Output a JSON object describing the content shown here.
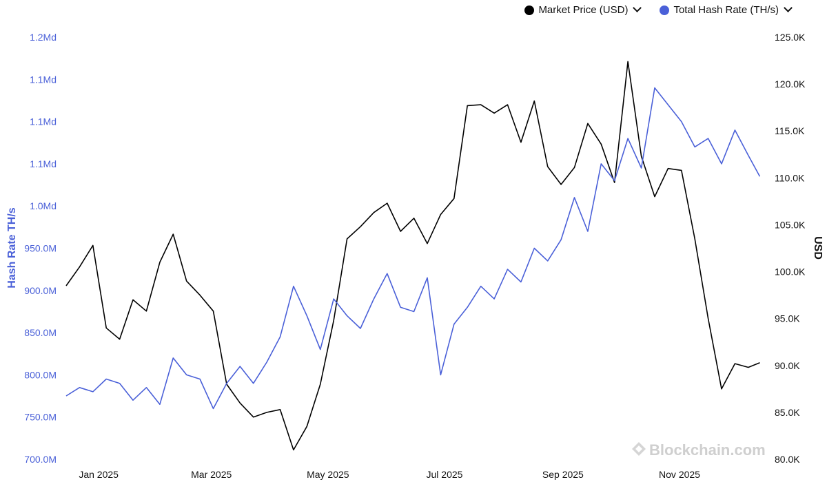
{
  "legend": [
    {
      "label": "Market Price (USD)",
      "color": "#000000"
    },
    {
      "label": "Total Hash Rate (TH/s)",
      "color": "#4a60d8"
    }
  ],
  "watermark": "Blockchain.com",
  "chart_data": {
    "type": "line",
    "title": "",
    "x_range": [
      "2024-12-15",
      "2025-12-15"
    ],
    "x_ticks": [
      {
        "label": "Jan 2025",
        "date": "2025-01-01"
      },
      {
        "label": "Mar 2025",
        "date": "2025-03-01"
      },
      {
        "label": "May 2025",
        "date": "2025-05-01"
      },
      {
        "label": "Jul 2025",
        "date": "2025-07-01"
      },
      {
        "label": "Sep 2025",
        "date": "2025-09-01"
      },
      {
        "label": "Nov 2025",
        "date": "2025-11-01"
      }
    ],
    "left_axis": {
      "label": "Hash Rate TH/s",
      "range": [
        700000000,
        1200000000
      ],
      "ticks": [
        {
          "value": 700000000,
          "label": "700.0M"
        },
        {
          "value": 750000000,
          "label": "750.0M"
        },
        {
          "value": 800000000,
          "label": "800.0M"
        },
        {
          "value": 850000000,
          "label": "850.0M"
        },
        {
          "value": 900000000,
          "label": "900.0M"
        },
        {
          "value": 950000000,
          "label": "950.0M"
        },
        {
          "value": 1000000000,
          "label": "1.0Md"
        },
        {
          "value": 1050000000,
          "label": "1.1Md"
        },
        {
          "value": 1100000000,
          "label": "1.1Md"
        },
        {
          "value": 1150000000,
          "label": "1.1Md"
        },
        {
          "value": 1200000000,
          "label": "1.2Md"
        }
      ]
    },
    "right_axis": {
      "label": "USD",
      "range": [
        80000,
        125000
      ],
      "ticks": [
        {
          "value": 80000,
          "label": "80.0K"
        },
        {
          "value": 85000,
          "label": "85.0K"
        },
        {
          "value": 90000,
          "label": "90.0K"
        },
        {
          "value": 95000,
          "label": "95.0K"
        },
        {
          "value": 100000,
          "label": "100.0K"
        },
        {
          "value": 105000,
          "label": "105.0K"
        },
        {
          "value": 110000,
          "label": "110.0K"
        },
        {
          "value": 115000,
          "label": "115.0K"
        },
        {
          "value": 120000,
          "label": "120.0K"
        },
        {
          "value": 125000,
          "label": "125.0K"
        }
      ]
    },
    "series": [
      {
        "name": "Market Price (USD)",
        "axis": "right",
        "color": "#000000",
        "x": [
          "2024-12-15",
          "2024-12-22",
          "2024-12-29",
          "2025-01-05",
          "2025-01-12",
          "2025-01-19",
          "2025-01-26",
          "2025-02-02",
          "2025-02-09",
          "2025-02-16",
          "2025-02-23",
          "2025-03-02",
          "2025-03-09",
          "2025-03-16",
          "2025-03-23",
          "2025-03-30",
          "2025-04-06",
          "2025-04-13",
          "2025-04-20",
          "2025-04-27",
          "2025-05-04",
          "2025-05-11",
          "2025-05-18",
          "2025-05-25",
          "2025-06-01",
          "2025-06-08",
          "2025-06-15",
          "2025-06-22",
          "2025-06-29",
          "2025-07-06",
          "2025-07-13",
          "2025-07-20",
          "2025-07-27",
          "2025-08-03",
          "2025-08-10",
          "2025-08-17",
          "2025-08-24",
          "2025-08-31",
          "2025-09-07",
          "2025-09-14",
          "2025-09-21",
          "2025-09-28",
          "2025-10-05",
          "2025-10-12",
          "2025-10-19",
          "2025-10-26",
          "2025-11-02",
          "2025-11-09",
          "2025-11-16",
          "2025-11-23",
          "2025-11-30",
          "2025-12-07",
          "2025-12-13"
        ],
        "values": [
          98500,
          100500,
          102800,
          94000,
          92800,
          97000,
          95800,
          101000,
          104000,
          99000,
          97500,
          95800,
          88000,
          86000,
          84500,
          85000,
          85300,
          81000,
          83500,
          88000,
          94800,
          103500,
          104800,
          106300,
          107300,
          104300,
          105700,
          103000,
          106100,
          107800,
          117700,
          117800,
          116900,
          117800,
          113800,
          118200,
          111200,
          109300,
          111100,
          115800,
          113600,
          109500,
          122400,
          112300,
          108000,
          111000,
          110800,
          103500,
          95000,
          87500,
          90200,
          89800,
          90300
        ]
      },
      {
        "name": "Total Hash Rate (TH/s)",
        "axis": "left",
        "color": "#4a60d8",
        "x": [
          "2024-12-15",
          "2024-12-22",
          "2024-12-29",
          "2025-01-05",
          "2025-01-12",
          "2025-01-19",
          "2025-01-26",
          "2025-02-02",
          "2025-02-09",
          "2025-02-16",
          "2025-02-23",
          "2025-03-02",
          "2025-03-09",
          "2025-03-16",
          "2025-03-23",
          "2025-03-30",
          "2025-04-06",
          "2025-04-13",
          "2025-04-20",
          "2025-04-27",
          "2025-05-04",
          "2025-05-11",
          "2025-05-18",
          "2025-05-25",
          "2025-06-01",
          "2025-06-08",
          "2025-06-15",
          "2025-06-22",
          "2025-06-29",
          "2025-07-06",
          "2025-07-13",
          "2025-07-20",
          "2025-07-27",
          "2025-08-03",
          "2025-08-10",
          "2025-08-17",
          "2025-08-24",
          "2025-08-31",
          "2025-09-07",
          "2025-09-14",
          "2025-09-21",
          "2025-09-28",
          "2025-10-05",
          "2025-10-12",
          "2025-10-19",
          "2025-10-26",
          "2025-11-02",
          "2025-11-09",
          "2025-11-16",
          "2025-11-23",
          "2025-11-30",
          "2025-12-07",
          "2025-12-13"
        ],
        "values": [
          775000000,
          785000000,
          780000000,
          795000000,
          790000000,
          770000000,
          785000000,
          765000000,
          820000000,
          800000000,
          795000000,
          760000000,
          790000000,
          810000000,
          790000000,
          815000000,
          845000000,
          905000000,
          870000000,
          830000000,
          890000000,
          870000000,
          855000000,
          890000000,
          920000000,
          880000000,
          875000000,
          915000000,
          800000000,
          860000000,
          880000000,
          905000000,
          890000000,
          925000000,
          910000000,
          950000000,
          935000000,
          960000000,
          1010000000,
          970000000,
          1050000000,
          1030000000,
          1080000000,
          1045000000,
          1140000000,
          1120000000,
          1100000000,
          1070000000,
          1080000000,
          1050000000,
          1090000000,
          1060000000,
          1035000000
        ]
      }
    ]
  }
}
